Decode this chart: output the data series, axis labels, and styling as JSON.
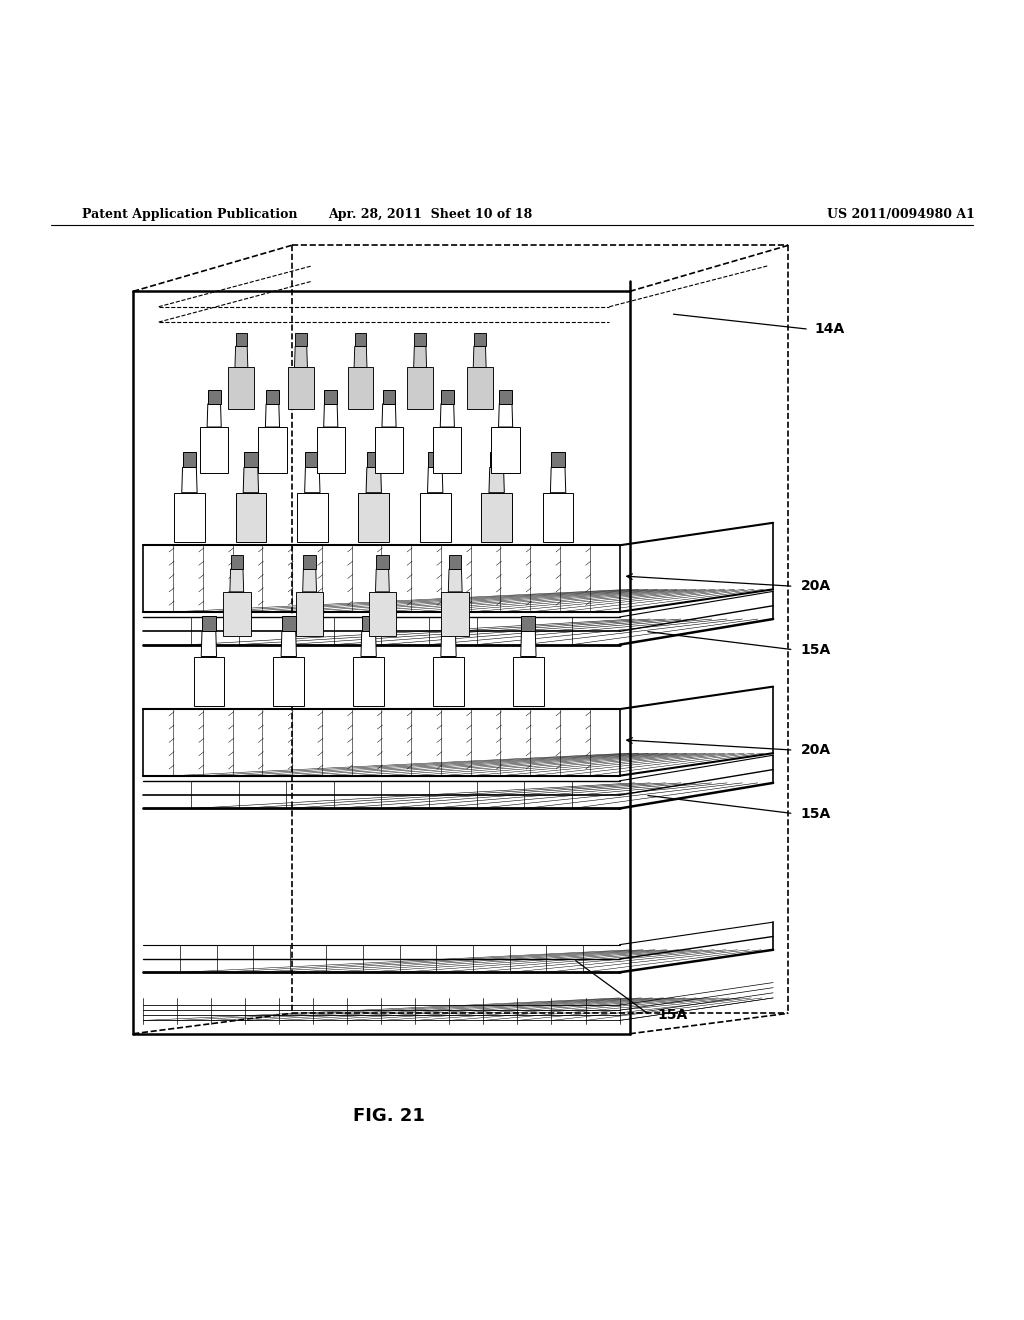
{
  "header_left": "Patent Application Publication",
  "header_mid": "Apr. 28, 2011  Sheet 10 of 18",
  "header_right": "US 2011/0094980 A1",
  "figure_label": "FIG. 21",
  "bg_color": "#ffffff",
  "line_color": "#000000"
}
